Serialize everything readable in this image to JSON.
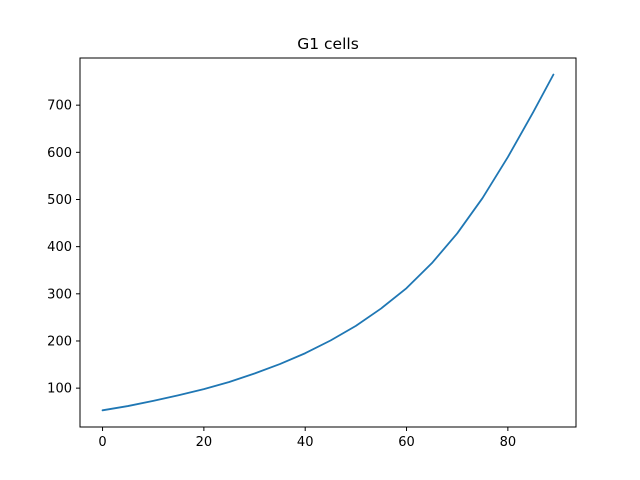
{
  "chart_data": {
    "type": "line",
    "title": "G1 cells",
    "xlabel": "",
    "ylabel": "",
    "xlim": [
      -4.45,
      93.45
    ],
    "ylim": [
      17.6,
      800
    ],
    "x_ticks": [
      0,
      20,
      40,
      60,
      80
    ],
    "y_ticks": [
      100,
      200,
      300,
      400,
      500,
      600,
      700
    ],
    "grid": false,
    "legend": "none",
    "series": [
      {
        "color": "#1f77b4",
        "x": [
          0,
          5,
          10,
          15,
          20,
          25,
          30,
          35,
          40,
          45,
          50,
          55,
          60,
          65,
          70,
          75,
          80,
          85,
          89
        ],
        "y": [
          53,
          62,
          73,
          85,
          98,
          113,
          131,
          151,
          174,
          201,
          232,
          269,
          312,
          365,
          428,
          503,
          590,
          685,
          765
        ]
      }
    ]
  }
}
